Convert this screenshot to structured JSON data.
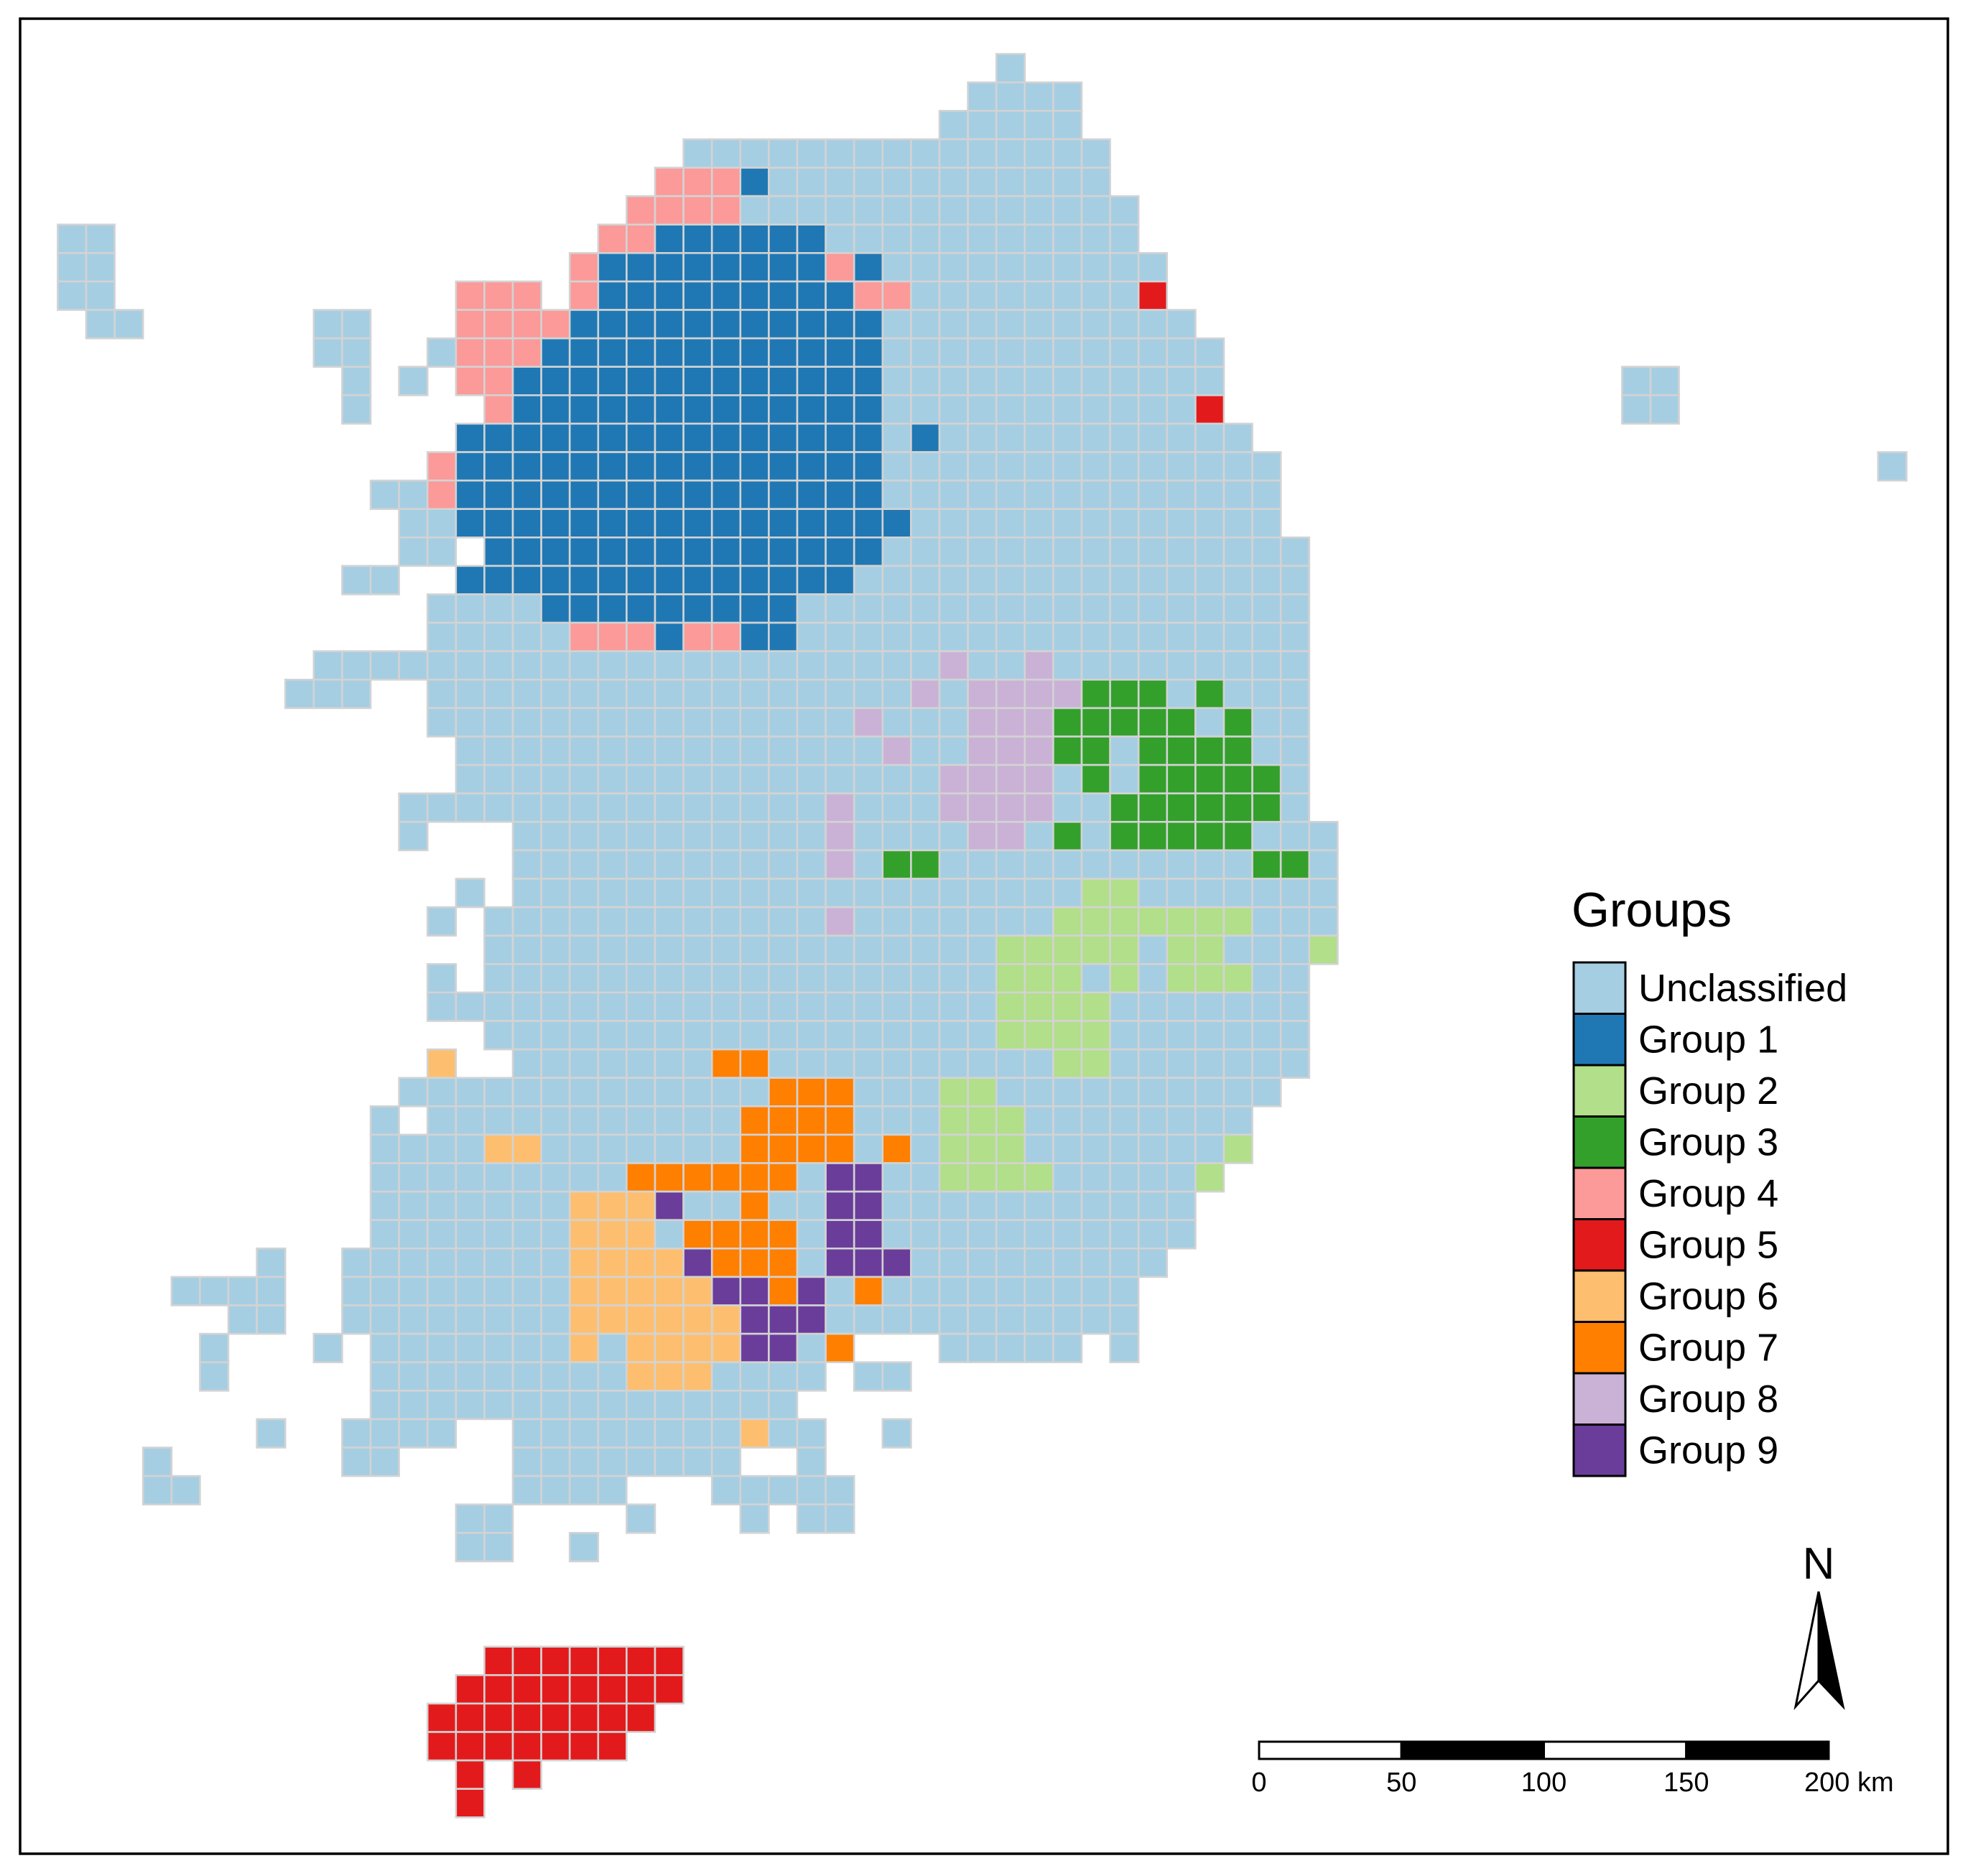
{
  "legend": {
    "title": "Groups",
    "items": [
      {
        "name": "Unclassified",
        "color": "#a6cee3"
      },
      {
        "name": "Group 1",
        "color": "#1f78b4"
      },
      {
        "name": "Group 2",
        "color": "#b2df8a"
      },
      {
        "name": "Group 3",
        "color": "#33a02c"
      },
      {
        "name": "Group 4",
        "color": "#fb9a99"
      },
      {
        "name": "Group 5",
        "color": "#e31a1c"
      },
      {
        "name": "Group 6",
        "color": "#fdbf6f"
      },
      {
        "name": "Group 7",
        "color": "#ff7f00"
      },
      {
        "name": "Group 8",
        "color": "#cab2d6"
      },
      {
        "name": "Group 9",
        "color": "#6a3d9a"
      }
    ]
  },
  "north_arrow": {
    "label": "N"
  },
  "scale_bar": {
    "ticks": [
      0,
      50,
      100,
      150,
      {
        "value": 200,
        "label": "200 km"
      }
    ]
  }
}
